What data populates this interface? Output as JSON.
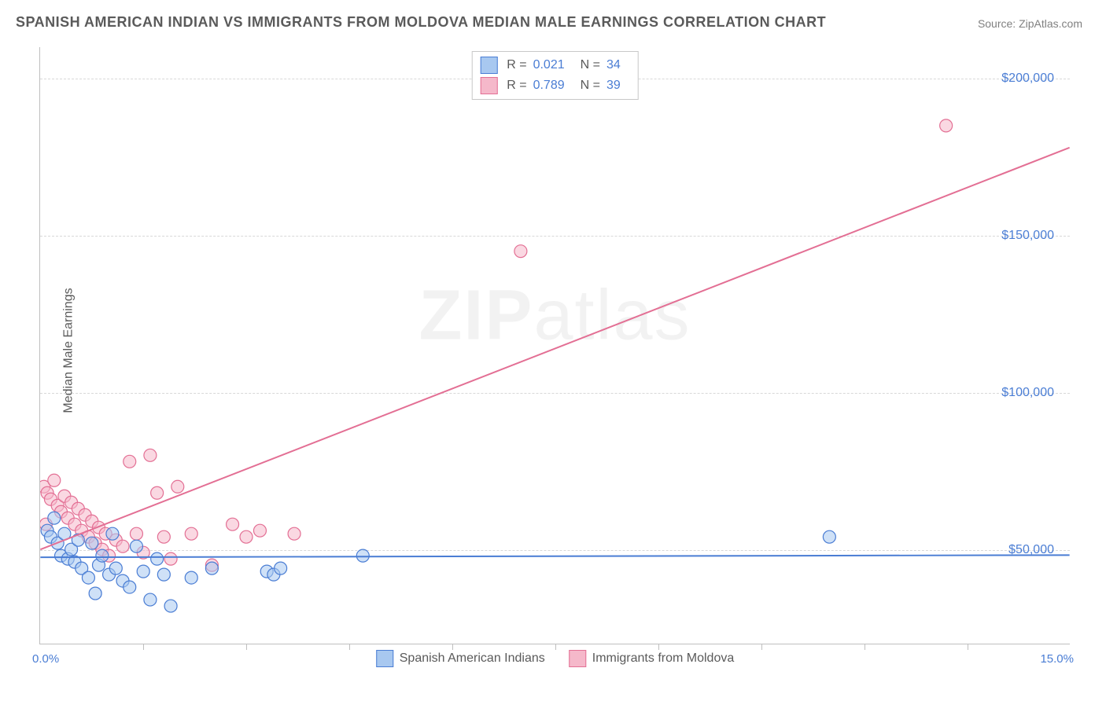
{
  "title": "SPANISH AMERICAN INDIAN VS IMMIGRANTS FROM MOLDOVA MEDIAN MALE EARNINGS CORRELATION CHART",
  "source": "Source: ZipAtlas.com",
  "ylabel": "Median Male Earnings",
  "watermark_bold": "ZIP",
  "watermark_light": "atlas",
  "chart": {
    "type": "scatter",
    "xlim": [
      0,
      15
    ],
    "ylim": [
      20000,
      210000
    ],
    "x_min_label": "0.0%",
    "x_max_label": "15.0%",
    "y_ticks": [
      50000,
      100000,
      150000,
      200000
    ],
    "y_tick_labels": [
      "$50,000",
      "$100,000",
      "$150,000",
      "$200,000"
    ],
    "x_tick_positions": [
      1.5,
      3.0,
      4.5,
      6.0,
      7.5,
      9.0,
      10.5,
      12.0,
      13.5
    ],
    "grid_color": "#d8d8d8",
    "background_color": "#ffffff",
    "axis_color": "#bfbfbf",
    "tick_label_color": "#4a7dd4",
    "label_fontsize": 16,
    "title_fontsize": 18,
    "title_color": "#5a5a5a",
    "marker_radius": 8,
    "marker_stroke_width": 1.2,
    "trend_line_width": 2,
    "series": [
      {
        "name": "Spanish American Indians",
        "fill_color": "#a8c8f0",
        "stroke_color": "#4a7dd4",
        "fill_opacity": 0.55,
        "R": "0.021",
        "N": "34",
        "trend": {
          "x1": 0,
          "y1": 47500,
          "x2": 15,
          "y2": 48200
        },
        "points": [
          [
            0.1,
            56000
          ],
          [
            0.15,
            54000
          ],
          [
            0.2,
            60000
          ],
          [
            0.25,
            52000
          ],
          [
            0.3,
            48000
          ],
          [
            0.35,
            55000
          ],
          [
            0.4,
            47000
          ],
          [
            0.45,
            50000
          ],
          [
            0.5,
            46000
          ],
          [
            0.55,
            53000
          ],
          [
            0.6,
            44000
          ],
          [
            0.7,
            41000
          ],
          [
            0.75,
            52000
          ],
          [
            0.8,
            36000
          ],
          [
            0.85,
            45000
          ],
          [
            0.9,
            48000
          ],
          [
            1.0,
            42000
          ],
          [
            1.05,
            55000
          ],
          [
            1.1,
            44000
          ],
          [
            1.2,
            40000
          ],
          [
            1.3,
            38000
          ],
          [
            1.4,
            51000
          ],
          [
            1.5,
            43000
          ],
          [
            1.6,
            34000
          ],
          [
            1.7,
            47000
          ],
          [
            1.8,
            42000
          ],
          [
            1.9,
            32000
          ],
          [
            2.2,
            41000
          ],
          [
            2.5,
            44000
          ],
          [
            3.3,
            43000
          ],
          [
            3.4,
            42000
          ],
          [
            3.5,
            44000
          ],
          [
            4.7,
            48000
          ],
          [
            11.5,
            54000
          ]
        ]
      },
      {
        "name": "Immigrants from Moldova",
        "fill_color": "#f5b8ca",
        "stroke_color": "#e36f94",
        "fill_opacity": 0.55,
        "R": "0.789",
        "N": "39",
        "trend": {
          "x1": 0,
          "y1": 50000,
          "x2": 15,
          "y2": 178000
        },
        "points": [
          [
            0.05,
            70000
          ],
          [
            0.1,
            68000
          ],
          [
            0.15,
            66000
          ],
          [
            0.2,
            72000
          ],
          [
            0.25,
            64000
          ],
          [
            0.3,
            62000
          ],
          [
            0.35,
            67000
          ],
          [
            0.4,
            60000
          ],
          [
            0.45,
            65000
          ],
          [
            0.5,
            58000
          ],
          [
            0.55,
            63000
          ],
          [
            0.6,
            56000
          ],
          [
            0.65,
            61000
          ],
          [
            0.7,
            54000
          ],
          [
            0.75,
            59000
          ],
          [
            0.8,
            52000
          ],
          [
            0.85,
            57000
          ],
          [
            0.9,
            50000
          ],
          [
            0.95,
            55000
          ],
          [
            1.0,
            48000
          ],
          [
            1.1,
            53000
          ],
          [
            1.2,
            51000
          ],
          [
            1.3,
            78000
          ],
          [
            1.4,
            55000
          ],
          [
            1.5,
            49000
          ],
          [
            1.6,
            80000
          ],
          [
            1.7,
            68000
          ],
          [
            1.8,
            54000
          ],
          [
            1.9,
            47000
          ],
          [
            2.0,
            70000
          ],
          [
            2.2,
            55000
          ],
          [
            2.5,
            45000
          ],
          [
            2.8,
            58000
          ],
          [
            3.0,
            54000
          ],
          [
            3.2,
            56000
          ],
          [
            3.7,
            55000
          ],
          [
            7.0,
            145000
          ],
          [
            13.2,
            185000
          ],
          [
            0.08,
            58000
          ]
        ]
      }
    ]
  },
  "legend_top": {
    "r_label": "R =",
    "n_label": "N ="
  },
  "legend_bottom": {
    "series1_label": "Spanish American Indians",
    "series2_label": "Immigrants from Moldova"
  }
}
